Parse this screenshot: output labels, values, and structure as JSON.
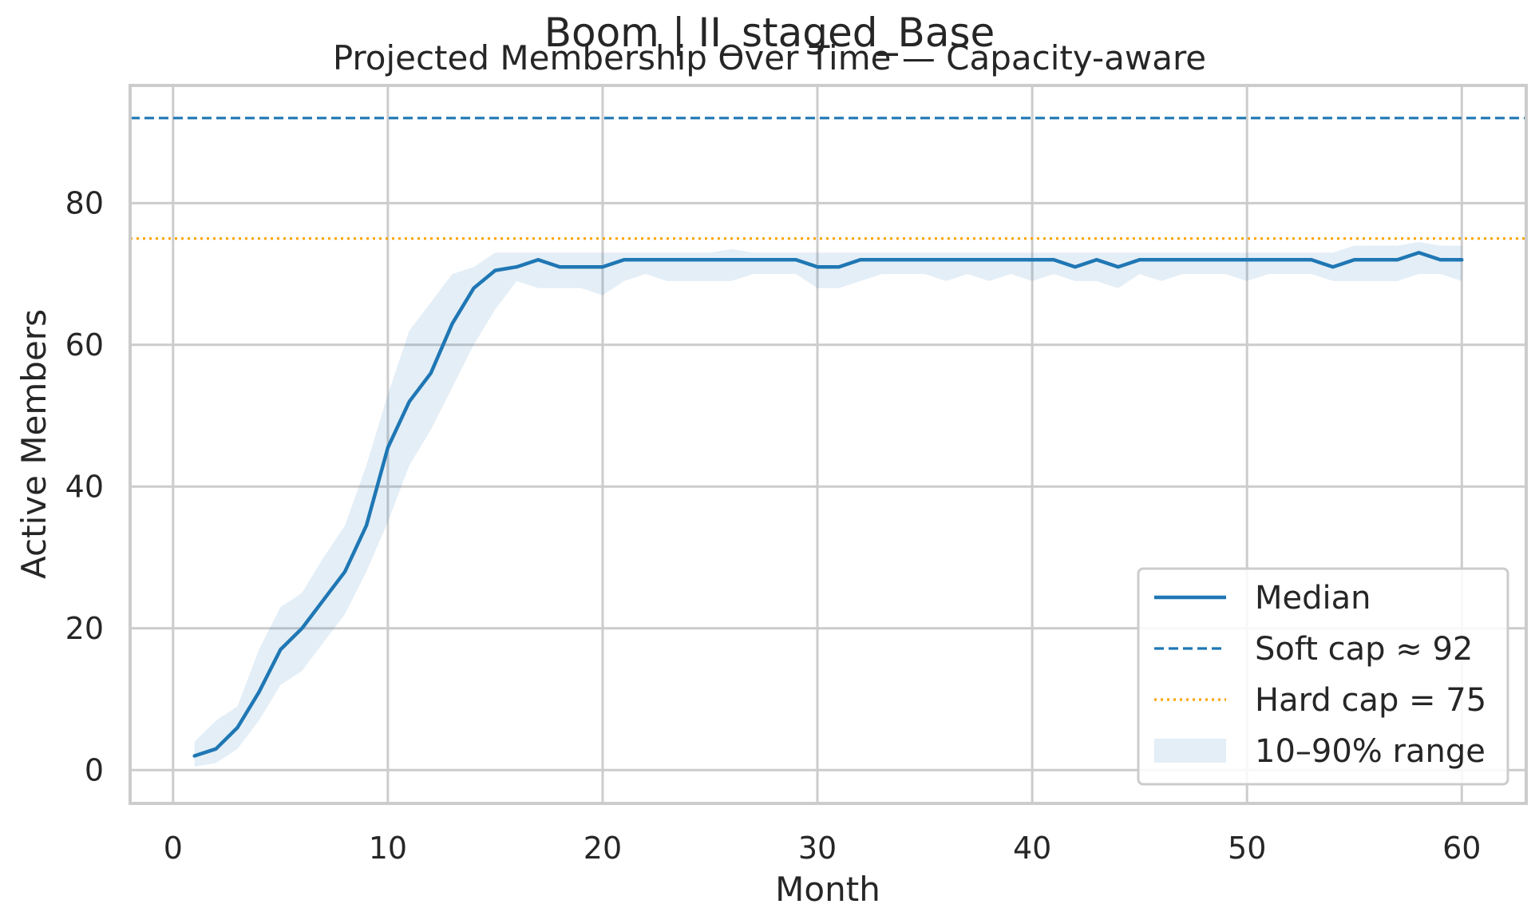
{
  "chart_data": {
    "type": "line",
    "suptitle": "Boom | II_staged_Base",
    "title": "Projected Membership Over Time — Capacity-aware",
    "xlabel": "Month",
    "ylabel": "Active Members",
    "xlim": [
      -2,
      63
    ],
    "ylim": [
      -4.7,
      96.6
    ],
    "xticks": [
      0,
      10,
      20,
      30,
      40,
      50,
      60
    ],
    "yticks": [
      0,
      20,
      40,
      60,
      80
    ],
    "grid": true,
    "legend_position": "lower-right",
    "x": [
      1,
      2,
      3,
      4,
      5,
      6,
      7,
      8,
      9,
      10,
      11,
      12,
      13,
      14,
      15,
      16,
      17,
      18,
      19,
      20,
      21,
      22,
      23,
      24,
      25,
      26,
      27,
      28,
      29,
      30,
      31,
      32,
      33,
      34,
      35,
      36,
      37,
      38,
      39,
      40,
      41,
      42,
      43,
      44,
      45,
      46,
      47,
      48,
      49,
      50,
      51,
      52,
      53,
      54,
      55,
      56,
      57,
      58,
      59,
      60
    ],
    "series": [
      {
        "name": "Median",
        "style": "solid",
        "color": "#1f77b4",
        "values": [
          2,
          3,
          6,
          11,
          17,
          20,
          24,
          28,
          34.5,
          45.5,
          52,
          56,
          63,
          68,
          70.5,
          71,
          72,
          71,
          71,
          71,
          72,
          72,
          72,
          72,
          72,
          72,
          72,
          72,
          72,
          71,
          71,
          72,
          72,
          72,
          72,
          72,
          72,
          72,
          72,
          72,
          72,
          71,
          72,
          71,
          72,
          72,
          72,
          72,
          72,
          72,
          72,
          72,
          72,
          71,
          72,
          72,
          72,
          73,
          72,
          72
        ]
      },
      {
        "name": "10–90% range",
        "style": "band",
        "color": "#1f77b4",
        "lower": [
          0.5,
          1,
          3,
          7,
          12,
          14,
          18,
          22,
          28,
          35,
          43,
          48,
          54,
          60,
          65,
          69,
          68,
          68,
          68,
          67,
          69,
          70,
          69,
          69,
          69,
          69,
          70,
          70,
          70,
          68,
          68,
          69,
          70,
          70,
          70,
          69,
          70,
          69,
          70,
          69,
          70,
          69,
          69,
          68,
          70,
          69,
          70,
          70,
          70,
          69,
          70,
          70,
          70,
          69,
          69,
          69,
          69,
          70,
          70,
          69
        ],
        "upper": [
          4,
          7,
          9,
          17,
          23,
          25,
          30,
          34.5,
          43,
          53,
          62,
          66,
          70,
          71,
          73,
          73,
          73,
          73,
          73,
          73,
          73,
          73,
          73,
          73,
          73,
          73.5,
          73,
          73,
          73,
          73,
          73,
          73,
          73,
          73,
          73,
          73,
          73,
          73,
          73,
          73,
          73,
          73,
          73,
          73,
          73,
          73,
          73,
          73,
          73,
          73,
          73,
          73,
          73,
          73,
          74,
          74,
          74,
          74.5,
          74,
          74
        ]
      }
    ],
    "reference_lines": [
      {
        "name": "Soft cap ≈ 92",
        "y": 92,
        "style": "dashed",
        "color": "#1f77b4"
      },
      {
        "name": "Hard cap = 75",
        "y": 75,
        "style": "dotted",
        "color": "#ff9f1c"
      }
    ],
    "colors": {
      "median": "#1f77b4",
      "soft_cap": "#1f77b4",
      "hard_cap": "#ffa500",
      "band": "#1f77b4",
      "grid": "#cccccc",
      "spine": "#cccccc",
      "text": "#262626"
    }
  }
}
